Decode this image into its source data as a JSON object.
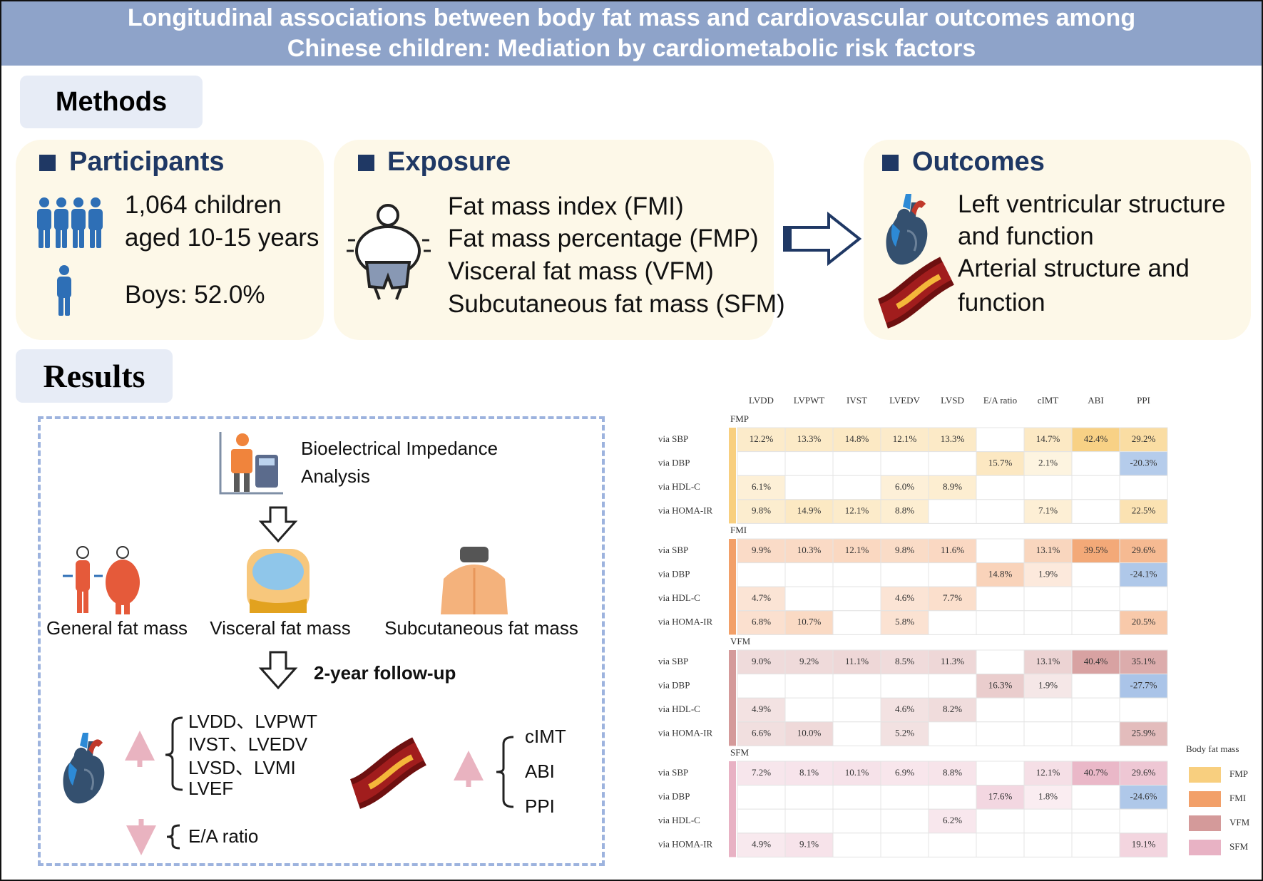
{
  "header": {
    "title_lines": [
      "Longitudinal associations between body fat mass and cardiovascular outcomes among",
      "Chinese children: Mediation by cardiometabolic risk factors"
    ]
  },
  "methods": {
    "label": "Methods",
    "participants": {
      "heading": "Participants",
      "lines": [
        "1,064 children",
        "aged 10-15 years",
        "Boys: 52.0%"
      ]
    },
    "exposure": {
      "heading": "Exposure",
      "lines": [
        "Fat mass index (FMI)",
        "Fat mass percentage (FMP)",
        "Visceral fat mass (VFM)",
        "Subcutaneous fat mass (SFM)"
      ]
    },
    "outcomes": {
      "heading": "Outcomes",
      "lines": [
        "Left ventricular structure",
        "and function",
        "Arterial structure and",
        "function"
      ]
    }
  },
  "results": {
    "label": "Results",
    "flow": {
      "measurement_lines": [
        "Bioelectrical Impedance",
        "Analysis"
      ],
      "fat_types": [
        "General fat mass",
        "Visceral fat mass",
        "Subcutaneous fat mass"
      ],
      "follow_up": "2-year follow-up",
      "cardiac_increase": [
        "LVDD、LVPWT",
        "IVST、LVEDV",
        "LVSD、LVMI",
        "LVEF"
      ],
      "cardiac_decrease": [
        "E/A ratio"
      ],
      "arterial_increase": [
        "cIMT",
        "ABI",
        "PPI"
      ]
    },
    "table": {
      "columns": [
        "LVDD",
        "LVPWT",
        "IVST",
        "LVEDV",
        "LVSD",
        "E/A ratio",
        "cIMT",
        "ABI",
        "PPI"
      ],
      "groups": [
        {
          "name": "FMP",
          "color": "#f8cf7f",
          "rows": [
            {
              "label": "via SBP",
              "cells": [
                "12.2%",
                "13.3%",
                "14.8%",
                "12.1%",
                "13.3%",
                null,
                "14.7%",
                "42.4%",
                "29.2%"
              ]
            },
            {
              "label": "via DBP",
              "cells": [
                null,
                null,
                null,
                null,
                null,
                "15.7%",
                "2.1%",
                null,
                "-20.3%"
              ]
            },
            {
              "label": "via HDL-C",
              "cells": [
                "6.1%",
                null,
                null,
                "6.0%",
                "8.9%",
                null,
                null,
                null,
                null
              ]
            },
            {
              "label": "via HOMA-IR",
              "cells": [
                "9.8%",
                "14.9%",
                "12.1%",
                "8.8%",
                null,
                null,
                "7.1%",
                null,
                "22.5%"
              ]
            }
          ]
        },
        {
          "name": "FMI",
          "color": "#f2a069",
          "rows": [
            {
              "label": "via SBP",
              "cells": [
                "9.9%",
                "10.3%",
                "12.1%",
                "9.8%",
                "11.6%",
                null,
                "13.1%",
                "39.5%",
                "29.6%"
              ]
            },
            {
              "label": "via DBP",
              "cells": [
                null,
                null,
                null,
                null,
                null,
                "14.8%",
                "1.9%",
                null,
                "-24.1%"
              ]
            },
            {
              "label": "via HDL-C",
              "cells": [
                "4.7%",
                null,
                null,
                "4.6%",
                "7.7%",
                null,
                null,
                null,
                null
              ]
            },
            {
              "label": "via HOMA-IR",
              "cells": [
                "6.8%",
                "10.7%",
                null,
                "5.8%",
                null,
                null,
                null,
                null,
                "20.5%"
              ]
            }
          ]
        },
        {
          "name": "VFM",
          "color": "#d49a9a",
          "rows": [
            {
              "label": "via SBP",
              "cells": [
                "9.0%",
                "9.2%",
                "11.1%",
                "8.5%",
                "11.3%",
                null,
                "13.1%",
                "40.4%",
                "35.1%"
              ]
            },
            {
              "label": "via DBP",
              "cells": [
                null,
                null,
                null,
                null,
                null,
                "16.3%",
                "1.9%",
                null,
                "-27.7%"
              ]
            },
            {
              "label": "via HDL-C",
              "cells": [
                "4.9%",
                null,
                null,
                "4.6%",
                "8.2%",
                null,
                null,
                null,
                null
              ]
            },
            {
              "label": "via HOMA-IR",
              "cells": [
                "6.6%",
                "10.0%",
                null,
                "5.2%",
                null,
                null,
                null,
                null,
                "25.9%"
              ]
            }
          ]
        },
        {
          "name": "SFM",
          "color": "#e8b2c4",
          "rows": [
            {
              "label": "via SBP",
              "cells": [
                "7.2%",
                "8.1%",
                "10.1%",
                "6.9%",
                "8.8%",
                null,
                "12.1%",
                "40.7%",
                "29.6%"
              ]
            },
            {
              "label": "via DBP",
              "cells": [
                null,
                null,
                null,
                null,
                null,
                "17.6%",
                "1.8%",
                null,
                "-24.6%"
              ]
            },
            {
              "label": "via HDL-C",
              "cells": [
                null,
                null,
                null,
                null,
                "6.2%",
                null,
                null,
                null,
                null
              ]
            },
            {
              "label": "via HOMA-IR",
              "cells": [
                "4.9%",
                "9.1%",
                null,
                null,
                null,
                null,
                null,
                null,
                "19.1%"
              ]
            }
          ]
        }
      ]
    },
    "legend": {
      "title": "Body fat mass",
      "items": [
        "FMP",
        "FMI",
        "VFM",
        "SFM"
      ]
    }
  }
}
